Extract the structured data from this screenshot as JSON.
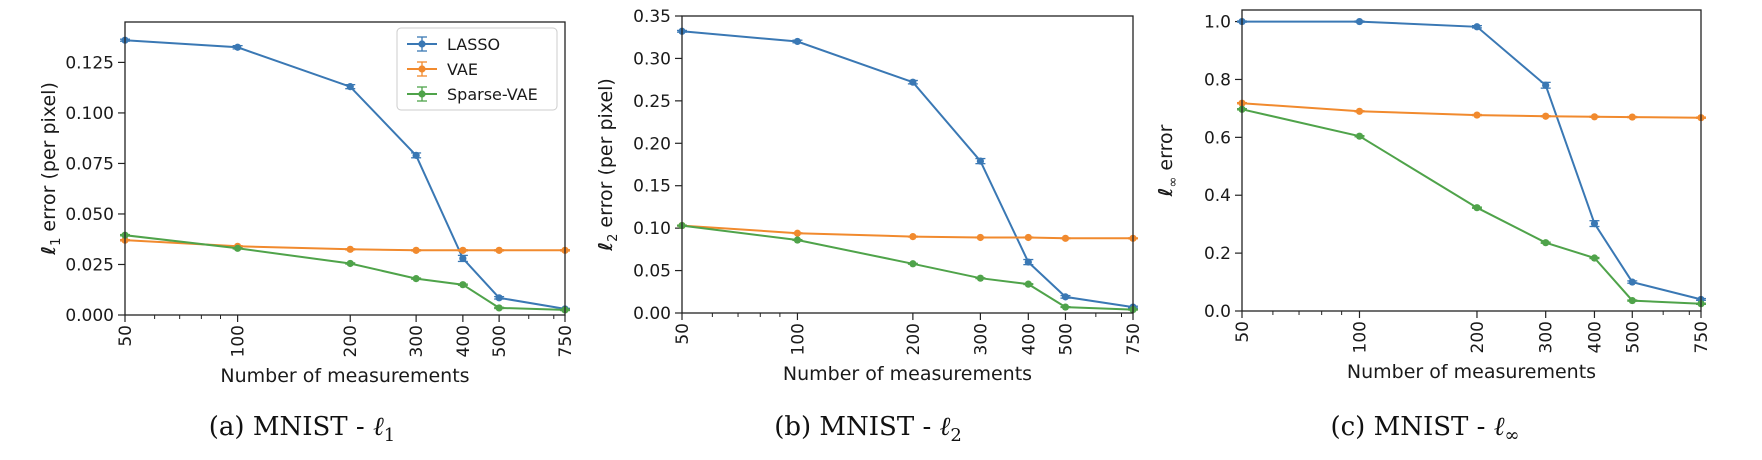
{
  "colors": {
    "LASSO": "#3a78b4",
    "VAE": "#f18a2e",
    "Sparse-VAE": "#4fa34a"
  },
  "chart_data": [
    {
      "type": "line",
      "caption": {
        "prefix": "(a) MNIST - ",
        "symbol": "ℓ",
        "sub": "1"
      },
      "xlabel": "Number of measurements",
      "ylabel": {
        "symbol": "ℓ",
        "sub": "1",
        "text": " error (per pixel)"
      },
      "x": [
        50,
        100,
        200,
        300,
        400,
        500,
        750
      ],
      "xscale": "log",
      "xticks": [
        "50",
        "100",
        "200",
        "300",
        "400",
        "500",
        "750"
      ],
      "ylim": [
        0,
        0.145
      ],
      "yticks": [
        "0.000",
        "0.025",
        "0.050",
        "0.075",
        "0.100",
        "0.125"
      ],
      "legend": "top-right",
      "series": [
        {
          "name": "LASSO",
          "values": [
            0.136,
            0.1325,
            0.113,
            0.079,
            0.028,
            0.0085,
            0.003
          ],
          "err": [
            0.0005,
            0.0008,
            0.001,
            0.0012,
            0.0015,
            0.0006,
            0.0003
          ]
        },
        {
          "name": "VAE",
          "values": [
            0.037,
            0.034,
            0.0325,
            0.032,
            0.032,
            0.032,
            0.032
          ],
          "err": [
            0.0003,
            0.0003,
            0.0003,
            0.0003,
            0.0003,
            0.0003,
            0.0003
          ]
        },
        {
          "name": "Sparse-VAE",
          "values": [
            0.0395,
            0.033,
            0.0255,
            0.018,
            0.015,
            0.0035,
            0.0025
          ],
          "err": [
            0.0003,
            0.0003,
            0.0003,
            0.0003,
            0.0003,
            0.0003,
            0.0003
          ]
        }
      ]
    },
    {
      "type": "line",
      "caption": {
        "prefix": "(b) MNIST - ",
        "symbol": "ℓ",
        "sub": "2"
      },
      "xlabel": "Number of measurements",
      "ylabel": {
        "symbol": "ℓ",
        "sub": "2",
        "text": " error (per pixel)"
      },
      "x": [
        50,
        100,
        200,
        300,
        400,
        500,
        750
      ],
      "xscale": "log",
      "xticks": [
        "50",
        "100",
        "200",
        "300",
        "400",
        "500",
        "750"
      ],
      "ylim": [
        0,
        0.35
      ],
      "yticks": [
        "0.00",
        "0.05",
        "0.10",
        "0.15",
        "0.20",
        "0.25",
        "0.30",
        "0.35"
      ],
      "series": [
        {
          "name": "LASSO",
          "values": [
            0.332,
            0.32,
            0.272,
            0.179,
            0.06,
            0.019,
            0.007
          ],
          "err": [
            0.001,
            0.0015,
            0.002,
            0.003,
            0.003,
            0.0015,
            0.001
          ]
        },
        {
          "name": "VAE",
          "values": [
            0.103,
            0.094,
            0.09,
            0.089,
            0.089,
            0.088,
            0.088
          ],
          "err": [
            0.0005,
            0.0005,
            0.0005,
            0.0005,
            0.0005,
            0.0005,
            0.0005
          ]
        },
        {
          "name": "Sparse-VAE",
          "values": [
            0.103,
            0.086,
            0.058,
            0.041,
            0.034,
            0.007,
            0.004
          ],
          "err": [
            0.0005,
            0.0005,
            0.0005,
            0.0005,
            0.0005,
            0.0005,
            0.0005
          ]
        }
      ]
    },
    {
      "type": "line",
      "caption": {
        "prefix": "(c) MNIST - ",
        "symbol": "ℓ",
        "sub": "∞"
      },
      "xlabel": "Number of measurements",
      "ylabel": {
        "symbol": "ℓ",
        "sub": "∞",
        "text": " error"
      },
      "x": [
        50,
        100,
        200,
        300,
        400,
        500,
        750
      ],
      "xscale": "log",
      "xticks": [
        "50",
        "100",
        "200",
        "300",
        "400",
        "500",
        "750"
      ],
      "ylim": [
        0,
        1.04
      ],
      "yticks": [
        "0.0",
        "0.2",
        "0.4",
        "0.6",
        "0.8",
        "1.0"
      ],
      "series": [
        {
          "name": "LASSO",
          "values": [
            1.0,
            1.0,
            0.982,
            0.78,
            0.302,
            0.1,
            0.04
          ],
          "err": [
            0.002,
            0.002,
            0.004,
            0.01,
            0.01,
            0.004,
            0.003
          ]
        },
        {
          "name": "VAE",
          "values": [
            0.718,
            0.69,
            0.677,
            0.673,
            0.671,
            0.67,
            0.668
          ],
          "err": [
            0.002,
            0.002,
            0.002,
            0.002,
            0.002,
            0.002,
            0.002
          ]
        },
        {
          "name": "Sparse-VAE",
          "values": [
            0.697,
            0.604,
            0.357,
            0.236,
            0.183,
            0.036,
            0.025
          ],
          "err": [
            0.002,
            0.002,
            0.002,
            0.002,
            0.002,
            0.002,
            0.002
          ]
        }
      ]
    }
  ]
}
